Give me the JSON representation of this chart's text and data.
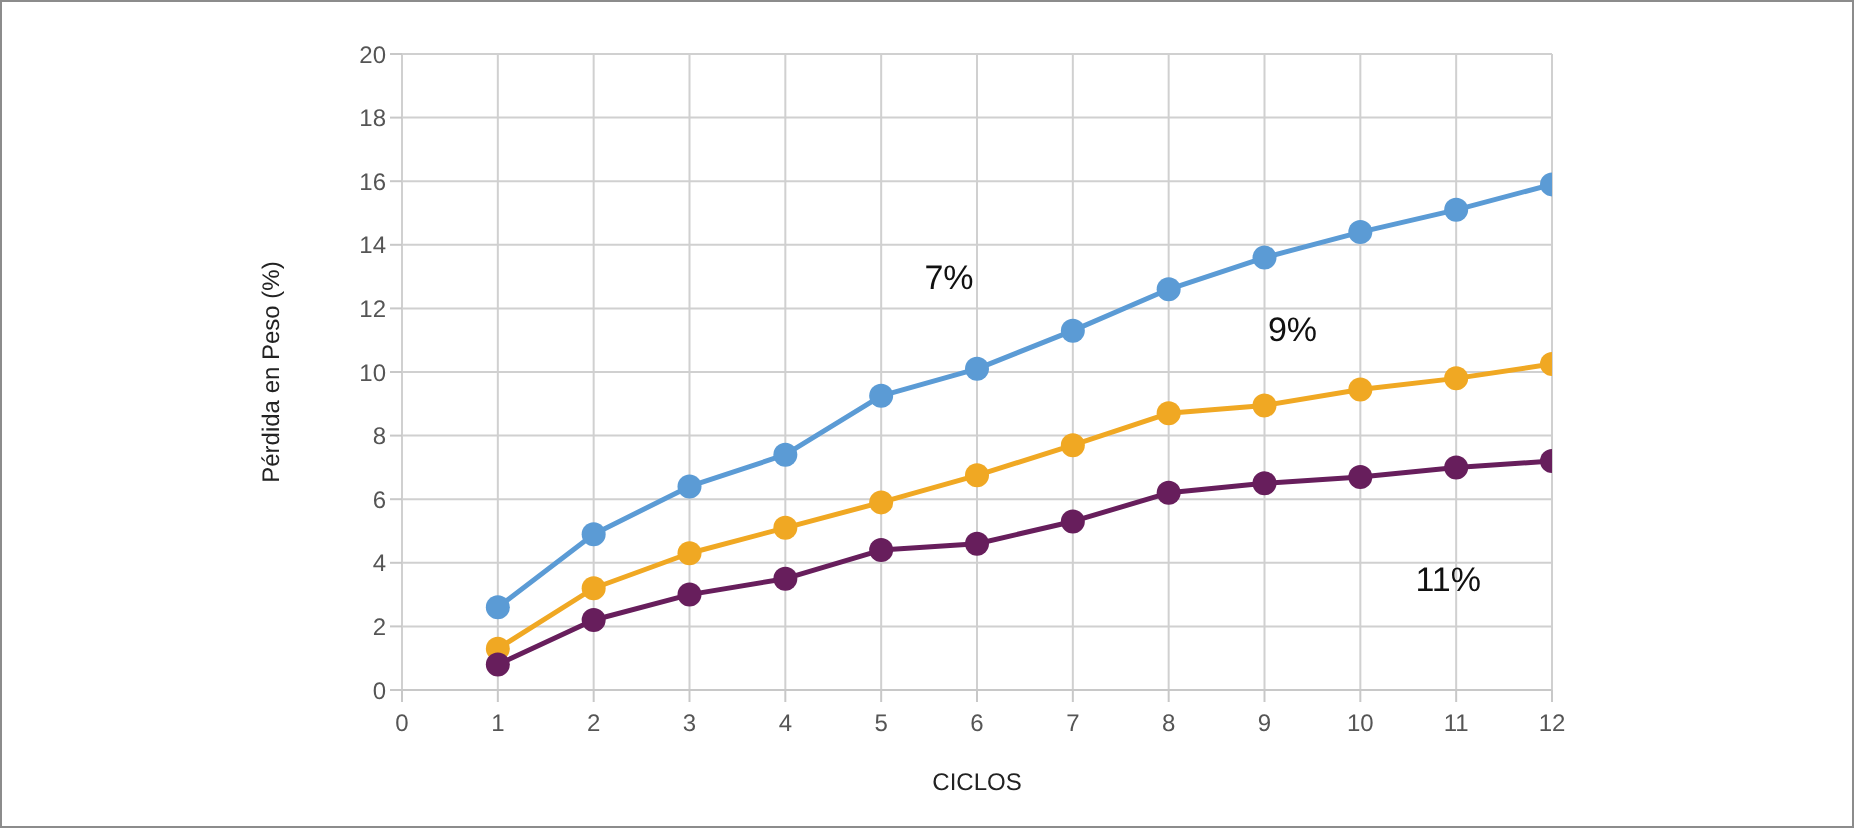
{
  "chart_data": {
    "type": "line",
    "xlabel": "CICLOS",
    "ylabel": "Pérdida en Peso (%)",
    "x": [
      1,
      2,
      3,
      4,
      5,
      6,
      7,
      8,
      9,
      10,
      11,
      12
    ],
    "xlim": [
      0,
      12
    ],
    "xticks": [
      0,
      1,
      2,
      3,
      4,
      5,
      6,
      7,
      8,
      9,
      10,
      11,
      12
    ],
    "ylim": [
      0,
      20
    ],
    "yticks": [
      0,
      2,
      4,
      6,
      8,
      10,
      12,
      14,
      16,
      18,
      20
    ],
    "grid": true,
    "marker": "circle",
    "line_style": "solid",
    "legend": false,
    "series": [
      {
        "name": "7%",
        "color": "#5b9bd5",
        "values": [
          2.6,
          4.9,
          6.4,
          7.4,
          9.25,
          10.1,
          11.3,
          12.6,
          13.6,
          14.4,
          15.1,
          15.9
        ]
      },
      {
        "name": "9%",
        "color": "#f0a823",
        "values": [
          1.3,
          3.2,
          4.3,
          5.1,
          5.9,
          6.75,
          7.7,
          8.7,
          8.95,
          9.45,
          9.8,
          10.25
        ]
      },
      {
        "name": "11%",
        "color": "#671e5c",
        "values": [
          0.8,
          2.2,
          3.0,
          3.5,
          4.4,
          4.6,
          5.3,
          6.2,
          6.5,
          6.7,
          7.0,
          7.2
        ]
      }
    ]
  }
}
